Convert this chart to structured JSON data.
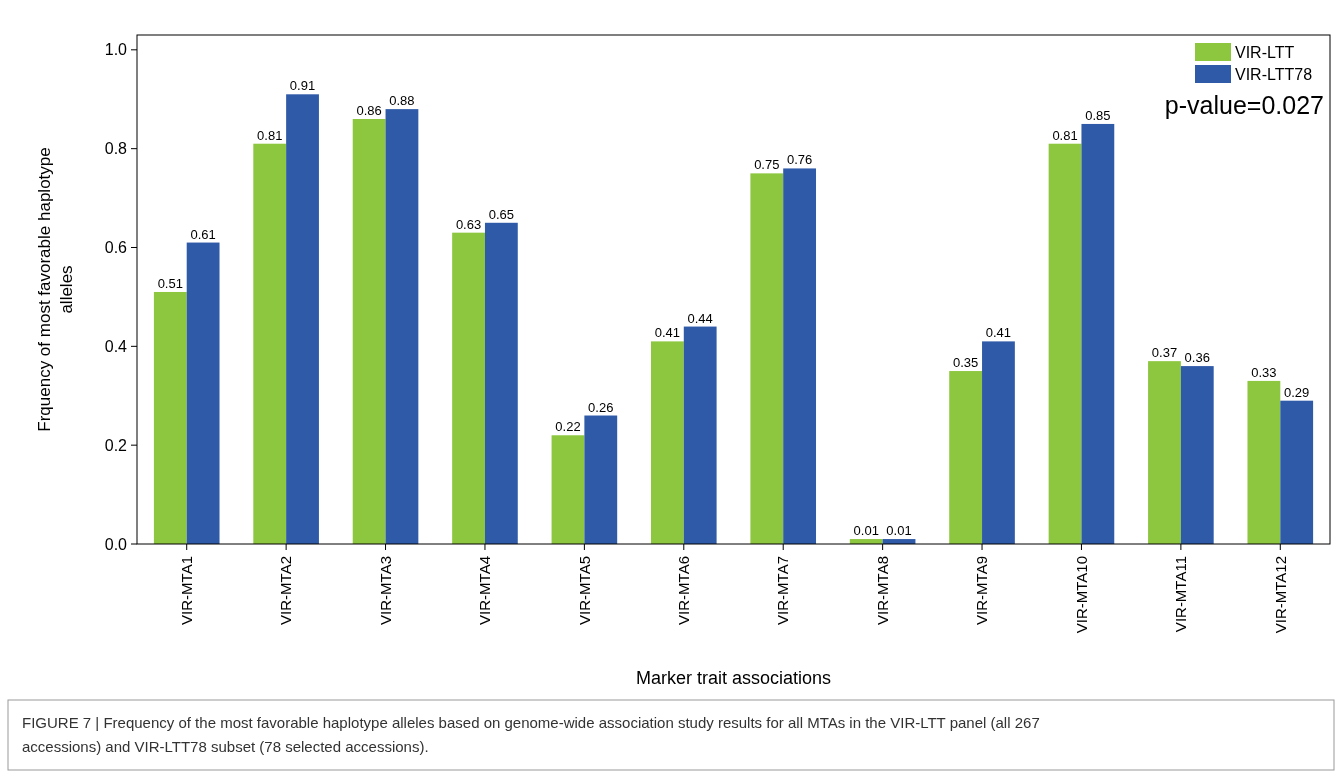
{
  "chart_data": {
    "type": "bar",
    "xlabel": "Marker trait associations",
    "ylabel": "Frquency of most favorable haplotype alleles",
    "categories": [
      "VIR-MTA1",
      "VIR-MTA2",
      "VIR-MTA3",
      "VIR-MTA4",
      "VIR-MTA5",
      "VIR-MTA6",
      "VIR-MTA7",
      "VIR-MTA8",
      "VIR-MTA9",
      "VIR-MTA10",
      "VIR-MTA11",
      "VIR-MTA12"
    ],
    "series": [
      {
        "name": "VIR-LTT",
        "color": "#8dc63f",
        "values": [
          0.51,
          0.81,
          0.86,
          0.63,
          0.22,
          0.41,
          0.75,
          0.01,
          0.35,
          0.81,
          0.37,
          0.33
        ]
      },
      {
        "name": "VIR-LTT78",
        "color": "#2f5aa8",
        "values": [
          0.61,
          0.91,
          0.88,
          0.65,
          0.26,
          0.44,
          0.76,
          0.01,
          0.41,
          0.85,
          0.36,
          0.29
        ]
      }
    ],
    "ylim": [
      0,
      1.03
    ],
    "yticks": [
      {
        "value": 0,
        "label": "0.0"
      },
      {
        "value": 0.2,
        "label": "0.2"
      },
      {
        "value": 0.4,
        "label": "0.4"
      },
      {
        "value": 0.6,
        "label": "0.6"
      },
      {
        "value": 0.8,
        "label": "0.8"
      },
      {
        "value": 1,
        "label": "1.0"
      }
    ],
    "data_labels": true,
    "legend": "top right",
    "grid": false,
    "annotations": [
      "p-value=0.027",
      "FIGURE 7 | Frequency of the most favorable haplotype alleles based on genome-wide association study results for all MTAs in the VIR-LTT panel (all 267 accessions) and VIR-LTT78 subset (78 selected accessions)."
    ]
  }
}
